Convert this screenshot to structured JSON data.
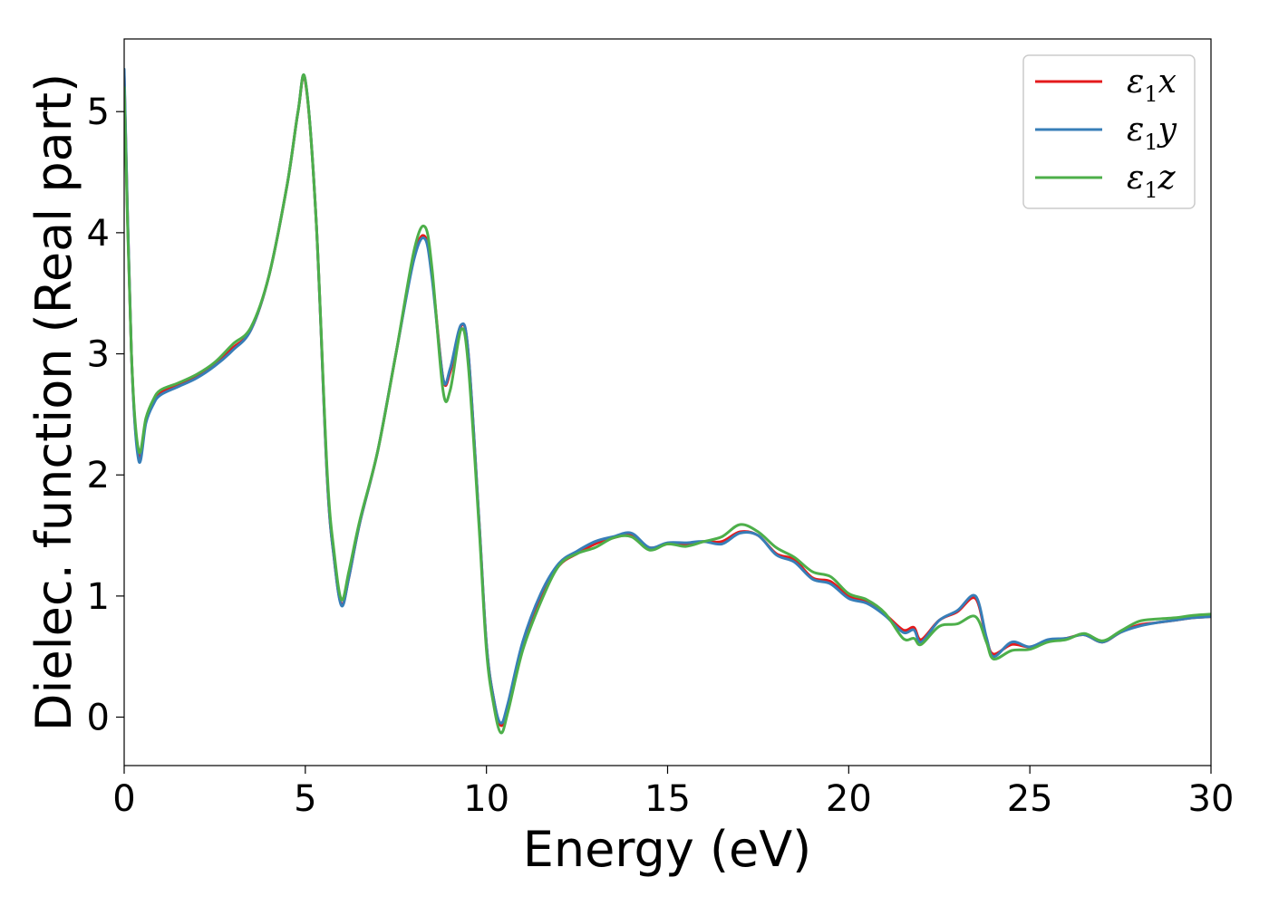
{
  "chart_data": {
    "type": "line",
    "xlabel": "Energy (eV)",
    "ylabel": "Dielec. function (Real part)",
    "xlim": [
      0,
      30
    ],
    "ylim": [
      -0.4,
      5.6
    ],
    "xticks": [
      0,
      5,
      10,
      15,
      20,
      25,
      30
    ],
    "yticks": [
      0,
      1,
      2,
      3,
      4,
      5
    ],
    "grid": false,
    "legend_position": "top-right",
    "series": [
      {
        "name": "ε1x",
        "label_base": "ε",
        "label_sub": "1",
        "label_var": "x",
        "color": "#e41a1c",
        "x": [
          0,
          0.2,
          0.4,
          0.6,
          0.8,
          1.0,
          1.5,
          2.0,
          2.5,
          3.0,
          3.5,
          4.0,
          4.5,
          4.8,
          5.0,
          5.3,
          5.6,
          5.8,
          6.0,
          6.2,
          6.5,
          7.0,
          7.5,
          8.0,
          8.3,
          8.5,
          8.8,
          9.0,
          9.3,
          9.5,
          9.8,
          10.0,
          10.2,
          10.4,
          10.6,
          11.0,
          11.5,
          12.0,
          12.5,
          13.0,
          13.5,
          14.0,
          14.5,
          15.0,
          15.5,
          16.0,
          16.5,
          17.0,
          17.5,
          18.0,
          18.5,
          19.0,
          19.5,
          20.0,
          20.5,
          21.0,
          21.5,
          21.8,
          22.0,
          22.5,
          23.0,
          23.5,
          23.8,
          24.0,
          24.5,
          25.0,
          25.5,
          26.0,
          26.5,
          27.0,
          27.5,
          28.0,
          28.5,
          29.0,
          29.5,
          30.0
        ],
        "y": [
          5.3,
          3.0,
          2.15,
          2.45,
          2.6,
          2.68,
          2.75,
          2.82,
          2.92,
          3.05,
          3.2,
          3.65,
          4.4,
          5.0,
          5.25,
          4.1,
          2.0,
          1.3,
          0.93,
          1.15,
          1.6,
          2.2,
          3.0,
          3.8,
          3.97,
          3.65,
          2.8,
          2.85,
          3.23,
          3.0,
          1.6,
          0.6,
          0.15,
          -0.07,
          0.1,
          0.6,
          1.0,
          1.25,
          1.35,
          1.43,
          1.48,
          1.5,
          1.4,
          1.43,
          1.43,
          1.45,
          1.45,
          1.53,
          1.5,
          1.35,
          1.3,
          1.15,
          1.12,
          1.0,
          0.95,
          0.85,
          0.72,
          0.74,
          0.64,
          0.8,
          0.87,
          0.98,
          0.65,
          0.52,
          0.6,
          0.58,
          0.63,
          0.65,
          0.68,
          0.62,
          0.7,
          0.76,
          0.78,
          0.8,
          0.82,
          0.83
        ]
      },
      {
        "name": "ε1y",
        "label_base": "ε",
        "label_sub": "1",
        "label_var": "y",
        "color": "#377eb8",
        "x": [
          0,
          0.2,
          0.4,
          0.6,
          0.8,
          1.0,
          1.5,
          2.0,
          2.5,
          3.0,
          3.5,
          4.0,
          4.5,
          4.8,
          5.0,
          5.3,
          5.6,
          5.8,
          6.0,
          6.2,
          6.5,
          7.0,
          7.5,
          8.0,
          8.3,
          8.5,
          8.8,
          9.0,
          9.3,
          9.5,
          9.8,
          10.0,
          10.2,
          10.4,
          10.6,
          11.0,
          11.5,
          12.0,
          12.5,
          13.0,
          13.5,
          14.0,
          14.5,
          15.0,
          15.5,
          16.0,
          16.5,
          17.0,
          17.5,
          18.0,
          18.5,
          19.0,
          19.5,
          20.0,
          20.5,
          21.0,
          21.5,
          21.8,
          22.0,
          22.5,
          23.0,
          23.5,
          23.8,
          24.0,
          24.5,
          25.0,
          25.5,
          26.0,
          26.5,
          27.0,
          27.5,
          28.0,
          28.5,
          29.0,
          29.5,
          30.0
        ],
        "y": [
          5.35,
          3.0,
          2.12,
          2.43,
          2.58,
          2.66,
          2.73,
          2.8,
          2.9,
          3.03,
          3.2,
          3.65,
          4.4,
          5.0,
          5.26,
          4.1,
          2.0,
          1.3,
          0.92,
          1.15,
          1.6,
          2.2,
          3.0,
          3.78,
          3.95,
          3.62,
          2.8,
          2.88,
          3.24,
          3.0,
          1.6,
          0.6,
          0.15,
          -0.05,
          0.12,
          0.62,
          1.02,
          1.27,
          1.37,
          1.45,
          1.49,
          1.52,
          1.4,
          1.44,
          1.44,
          1.45,
          1.43,
          1.52,
          1.5,
          1.34,
          1.28,
          1.14,
          1.1,
          0.98,
          0.94,
          0.84,
          0.7,
          0.72,
          0.62,
          0.8,
          0.88,
          1.0,
          0.66,
          0.5,
          0.62,
          0.58,
          0.64,
          0.65,
          0.68,
          0.62,
          0.7,
          0.75,
          0.78,
          0.8,
          0.82,
          0.83
        ]
      },
      {
        "name": "ε1z",
        "label_base": "ε",
        "label_sub": "1",
        "label_var": "z",
        "color": "#4daf4a",
        "x": [
          0,
          0.2,
          0.4,
          0.6,
          0.8,
          1.0,
          1.5,
          2.0,
          2.5,
          3.0,
          3.5,
          4.0,
          4.5,
          4.8,
          5.0,
          5.3,
          5.6,
          5.8,
          6.0,
          6.2,
          6.5,
          7.0,
          7.5,
          8.0,
          8.3,
          8.5,
          8.8,
          9.0,
          9.3,
          9.5,
          9.8,
          10.0,
          10.2,
          10.4,
          10.6,
          11.0,
          11.5,
          12.0,
          12.5,
          13.0,
          13.5,
          14.0,
          14.5,
          15.0,
          15.5,
          16.0,
          16.5,
          17.0,
          17.5,
          18.0,
          18.5,
          19.0,
          19.5,
          20.0,
          20.5,
          21.0,
          21.5,
          21.8,
          22.0,
          22.5,
          23.0,
          23.5,
          23.8,
          24.0,
          24.5,
          25.0,
          25.5,
          26.0,
          26.5,
          27.0,
          27.5,
          28.0,
          28.5,
          29.0,
          29.5,
          30.0
        ],
        "y": [
          5.2,
          3.0,
          2.2,
          2.47,
          2.62,
          2.7,
          2.76,
          2.83,
          2.93,
          3.08,
          3.22,
          3.65,
          4.4,
          5.0,
          5.26,
          4.1,
          2.05,
          1.35,
          0.97,
          1.2,
          1.62,
          2.2,
          3.0,
          3.85,
          4.05,
          3.7,
          2.7,
          2.7,
          3.2,
          2.9,
          1.55,
          0.55,
          0.1,
          -0.13,
          0.05,
          0.55,
          0.95,
          1.25,
          1.35,
          1.4,
          1.48,
          1.49,
          1.38,
          1.43,
          1.41,
          1.45,
          1.49,
          1.59,
          1.53,
          1.4,
          1.32,
          1.2,
          1.16,
          1.02,
          0.97,
          0.86,
          0.65,
          0.65,
          0.6,
          0.75,
          0.77,
          0.83,
          0.62,
          0.48,
          0.55,
          0.56,
          0.62,
          0.64,
          0.69,
          0.63,
          0.71,
          0.79,
          0.81,
          0.82,
          0.84,
          0.85
        ]
      }
    ]
  }
}
